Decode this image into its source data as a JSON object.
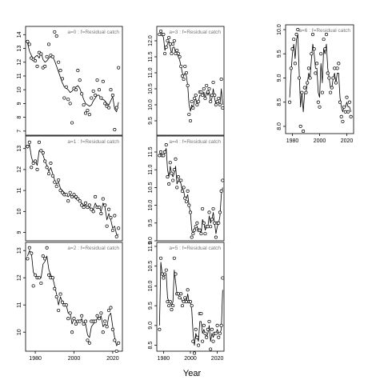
{
  "chart_data": {
    "type": "scatter",
    "xlabel": "Year",
    "x_ticks": [
      1980,
      2000,
      2020
    ],
    "panels": [
      {
        "id": "a0",
        "label": "a=0  :  f=Residual catch",
        "xlim": [
          1975,
          2025
        ],
        "ylim": [
          6.7,
          14.6
        ],
        "yticks": [
          7,
          8,
          9,
          10,
          11,
          12,
          13,
          14
        ],
        "x_axis": false,
        "x_vals_idx": true,
        "years": [
          1976,
          1977,
          1978,
          1979,
          1980,
          1981,
          1982,
          1983,
          1984,
          1985,
          1986,
          1987,
          1988,
          1989,
          1990,
          1991,
          1992,
          1993,
          1994,
          1995,
          1996,
          1997,
          1998,
          1999,
          2000,
          2001,
          2002,
          2003,
          2004,
          2005,
          2006,
          2007,
          2008,
          2009,
          2010,
          2011,
          2012,
          2013,
          2014,
          2015,
          2016,
          2017,
          2018,
          2019,
          2020,
          2021,
          2022,
          2023
        ],
        "points": [
          13.5,
          13.3,
          12.3,
          12.2,
          12.1,
          11.7,
          12.7,
          12.6,
          11.6,
          11.7,
          12.4,
          13.3,
          12.5,
          12.4,
          14.2,
          13.9,
          12.0,
          11.4,
          10.8,
          9.4,
          10.2,
          9.3,
          9.0,
          7.6,
          10.1,
          10.0,
          11.4,
          10.7,
          9.7,
          8.9,
          8.3,
          8.5,
          8.2,
          9.4,
          9.9,
          9.6,
          10.7,
          10.0,
          9.4,
          10.6,
          9.0,
          8.8,
          8.7,
          10.0,
          9.6,
          7.1,
          8.7,
          11.6
        ],
        "fit": [
          13.4,
          12.8,
          12.5,
          12.2,
          12.4,
          12.5,
          12.3,
          12.7,
          12.2,
          12.0,
          12.1,
          12.3,
          12.4,
          12.4,
          12.1,
          11.7,
          11.3,
          10.9,
          10.5,
          10.2,
          10.1,
          10.0,
          9.8,
          9.9,
          10.1,
          10.2,
          10.3,
          10.1,
          9.7,
          9.3,
          9.0,
          8.9,
          8.8,
          8.9,
          9.2,
          9.4,
          9.6,
          9.6,
          9.3,
          9.3,
          9.2,
          9.0,
          8.9,
          9.2,
          9.5,
          8.6,
          8.4,
          9.1
        ]
      },
      {
        "id": "a1",
        "label": "a=1  :  f=Residual catch",
        "xlim": [
          1975,
          2025
        ],
        "ylim": [
          8.6,
          13.6
        ],
        "yticks": [
          9,
          10,
          11,
          12,
          13
        ],
        "x_axis": false,
        "years": [
          1976,
          1977,
          1978,
          1979,
          1980,
          1981,
          1982,
          1983,
          1984,
          1985,
          1986,
          1987,
          1988,
          1989,
          1990,
          1991,
          1992,
          1993,
          1994,
          1995,
          1996,
          1997,
          1998,
          1999,
          2000,
          2001,
          2002,
          2003,
          2004,
          2005,
          2006,
          2007,
          2008,
          2009,
          2010,
          2011,
          2012,
          2013,
          2014,
          2015,
          2016,
          2017,
          2018,
          2019,
          2020,
          2021,
          2022,
          2023
        ],
        "points": [
          13.1,
          13.3,
          12.1,
          12.3,
          12.4,
          12.0,
          13.3,
          12.9,
          12.8,
          12.4,
          12.1,
          11.8,
          12.3,
          11.7,
          11.4,
          11.2,
          11.5,
          11.0,
          10.9,
          10.8,
          10.8,
          10.5,
          10.9,
          10.7,
          10.8,
          10.7,
          10.6,
          10.5,
          10.3,
          10.2,
          10.4,
          10.2,
          10.3,
          10.1,
          10.0,
          10.7,
          10.2,
          10.2,
          9.9,
          10.6,
          10.3,
          9.3,
          10.1,
          9.7,
          9.1,
          9.8,
          8.8,
          9.2
        ],
        "fit": [
          13.0,
          13.2,
          12.6,
          12.3,
          12.4,
          12.2,
          12.9,
          12.9,
          12.7,
          12.4,
          12.2,
          11.9,
          12.1,
          11.8,
          11.5,
          11.3,
          11.4,
          11.1,
          11.0,
          10.9,
          10.8,
          10.7,
          10.8,
          10.7,
          10.7,
          10.6,
          10.6,
          10.5,
          10.4,
          10.3,
          10.3,
          10.2,
          10.2,
          10.1,
          10.1,
          10.4,
          10.2,
          10.2,
          10.0,
          10.4,
          10.2,
          9.6,
          9.9,
          9.6,
          9.2,
          9.3,
          8.9,
          8.9
        ]
      },
      {
        "id": "a2",
        "label": "a=2  :  f=Residual catch",
        "xlim": [
          1975,
          2025
        ],
        "ylim": [
          9.3,
          13.3
        ],
        "yticks": [
          10,
          11,
          12,
          13
        ],
        "x_axis": true,
        "years": [
          1976,
          1977,
          1978,
          1979,
          1980,
          1981,
          1982,
          1983,
          1984,
          1985,
          1986,
          1987,
          1988,
          1989,
          1990,
          1991,
          1992,
          1993,
          1994,
          1995,
          1996,
          1997,
          1998,
          1999,
          2000,
          2001,
          2002,
          2003,
          2004,
          2005,
          2006,
          2007,
          2008,
          2009,
          2010,
          2011,
          2012,
          2013,
          2014,
          2015,
          2016,
          2017,
          2018,
          2019,
          2020,
          2021,
          2022,
          2023
        ],
        "points": [
          12.7,
          13.1,
          12.9,
          11.7,
          12.1,
          12.0,
          12.0,
          11.8,
          12.8,
          12.7,
          13.1,
          12.1,
          12.0,
          12.0,
          11.6,
          11.3,
          10.8,
          11.4,
          11.1,
          11.0,
          11.0,
          10.5,
          10.7,
          10.0,
          10.5,
          10.3,
          10.4,
          10.4,
          10.6,
          10.3,
          10.4,
          9.7,
          9.6,
          10.4,
          10.4,
          10.4,
          10.6,
          10.5,
          10.7,
          10.0,
          10.4,
          10.2,
          10.8,
          10.9,
          10.1,
          9.7,
          9.3,
          9.6
        ],
        "fit": [
          12.8,
          13.0,
          12.9,
          12.2,
          12.1,
          12.0,
          12.0,
          12.0,
          12.5,
          12.6,
          12.8,
          12.3,
          12.1,
          12.0,
          11.7,
          11.4,
          11.0,
          11.3,
          11.1,
          11.0,
          11.0,
          10.7,
          10.7,
          10.3,
          10.5,
          10.4,
          10.4,
          10.4,
          10.5,
          10.3,
          10.3,
          9.9,
          9.8,
          10.2,
          10.3,
          10.4,
          10.5,
          10.5,
          10.6,
          10.2,
          10.3,
          10.2,
          10.6,
          10.7,
          10.2,
          9.8,
          9.5,
          9.6
        ]
      },
      {
        "id": "a3",
        "label": "a=3  :  f=Residual catch",
        "xlim": [
          1975,
          2025
        ],
        "ylim": [
          9.05,
          12.45
        ],
        "yticks": [
          9.5,
          10.0,
          10.5,
          11.0,
          11.5,
          12.0
        ],
        "x_axis": false,
        "years": [
          1977,
          1978,
          1979,
          1980,
          1981,
          1982,
          1983,
          1984,
          1985,
          1986,
          1987,
          1988,
          1989,
          1990,
          1991,
          1992,
          1993,
          1994,
          1995,
          1996,
          1997,
          1998,
          1999,
          2000,
          2001,
          2002,
          2003,
          2004,
          2005,
          2006,
          2007,
          2008,
          2009,
          2010,
          2011,
          2012,
          2013,
          2014,
          2015,
          2016,
          2017,
          2018,
          2019,
          2020,
          2021,
          2022,
          2023,
          2024
        ],
        "points": [
          12.2,
          12.3,
          12.2,
          12.2,
          11.6,
          11.8,
          12.0,
          12.1,
          11.9,
          11.6,
          11.9,
          12.0,
          11.6,
          11.7,
          11.6,
          11.5,
          11.2,
          10.9,
          10.8,
          11.2,
          11.0,
          10.6,
          9.7,
          9.5,
          10.1,
          9.9,
          10.2,
          10.3,
          10.0,
          10.1,
          10.4,
          10.4,
          10.3,
          10.5,
          10.2,
          10.6,
          10.4,
          10.5,
          10.1,
          10.3,
          10.7,
          10.3,
          10.0,
          10.1,
          10.2,
          10.0,
          10.8,
          9.9
        ],
        "fit": [
          12.2,
          12.2,
          12.2,
          12.1,
          11.7,
          11.8,
          11.9,
          12.0,
          11.8,
          11.6,
          11.8,
          11.8,
          11.6,
          11.6,
          11.5,
          11.4,
          11.2,
          11.0,
          10.9,
          11.0,
          10.9,
          10.6,
          10.0,
          9.8,
          10.0,
          9.9,
          10.1,
          10.2,
          10.0,
          10.1,
          10.3,
          10.3,
          10.3,
          10.4,
          10.2,
          10.4,
          10.3,
          10.4,
          10.1,
          10.2,
          10.5,
          10.2,
          10.0,
          10.1,
          10.1,
          10.0,
          10.5,
          10.0
        ]
      },
      {
        "id": "a4",
        "label": "a=4  :  f=Residual catch",
        "xlim": [
          1975,
          2025
        ],
        "ylim": [
          9.0,
          11.95
        ],
        "yticks": [
          9.0,
          9.5,
          10.0,
          10.5,
          11.0,
          11.5
        ],
        "x_axis": false,
        "years": [
          1977,
          1978,
          1979,
          1980,
          1981,
          1982,
          1983,
          1984,
          1985,
          1986,
          1987,
          1988,
          1989,
          1990,
          1991,
          1992,
          1993,
          1994,
          1995,
          1996,
          1997,
          1998,
          1999,
          2000,
          2001,
          2002,
          2003,
          2004,
          2005,
          2006,
          2007,
          2008,
          2009,
          2010,
          2011,
          2012,
          2013,
          2014,
          2015,
          2016,
          2017,
          2018,
          2019,
          2020,
          2021,
          2022,
          2023,
          2024
        ],
        "points": [
          11.4,
          11.5,
          11.4,
          11.4,
          11.5,
          11.7,
          10.8,
          10.6,
          11.2,
          10.9,
          10.7,
          11.0,
          11.3,
          10.5,
          10.8,
          10.7,
          10.7,
          10.4,
          10.5,
          10.2,
          10.1,
          10.4,
          10.0,
          9.8,
          9.1,
          9.2,
          9.3,
          9.4,
          9.5,
          9.3,
          9.3,
          9.2,
          9.9,
          9.5,
          9.2,
          9.4,
          9.4,
          9.8,
          9.4,
          9.6,
          9.9,
          9.5,
          9.1,
          9.5,
          9.5,
          9.8,
          10.4,
          10.7
        ],
        "fit": [
          11.4,
          11.5,
          11.4,
          11.4,
          11.5,
          11.6,
          11.0,
          10.8,
          11.1,
          10.9,
          10.8,
          10.9,
          11.1,
          10.6,
          10.7,
          10.7,
          10.6,
          10.4,
          10.4,
          10.2,
          10.2,
          10.3,
          10.0,
          9.8,
          9.3,
          9.2,
          9.3,
          9.4,
          9.4,
          9.3,
          9.3,
          9.2,
          9.6,
          9.5,
          9.3,
          9.4,
          9.4,
          9.7,
          9.5,
          9.6,
          9.8,
          9.5,
          9.2,
          9.4,
          9.5,
          9.7,
          10.3,
          10.5
        ]
      },
      {
        "id": "a5",
        "label": "a=5  :  f=Residual catch",
        "xlim": [
          1975,
          2025
        ],
        "ylim": [
          8.35,
          11.1
        ],
        "yticks": [
          8.5,
          9.0,
          9.5,
          10.0,
          10.5,
          11.0
        ],
        "x_axis": true,
        "years": [
          1977,
          1978,
          1979,
          1980,
          1981,
          1982,
          1983,
          1984,
          1985,
          1986,
          1987,
          1988,
          1989,
          1990,
          1991,
          1992,
          1993,
          1994,
          1995,
          1996,
          1997,
          1998,
          1999,
          2000,
          2001,
          2002,
          2003,
          2004,
          2005,
          2006,
          2007,
          2008,
          2009,
          2010,
          2011,
          2012,
          2013,
          2014,
          2015,
          2016,
          2017,
          2018,
          2019,
          2020,
          2021,
          2022,
          2023,
          2024
        ],
        "points": [
          8.9,
          10.7,
          10.3,
          10.2,
          10.3,
          10.4,
          9.6,
          9.5,
          9.6,
          9.4,
          9.5,
          10.7,
          10.3,
          9.8,
          9.8,
          9.7,
          9.8,
          9.5,
          9.6,
          9.7,
          9.6,
          9.9,
          9.6,
          9.6,
          9.5,
          8.6,
          8.3,
          8.9,
          8.7,
          8.5,
          9.3,
          9.3,
          8.6,
          9.0,
          8.8,
          8.7,
          8.9,
          9.1,
          8.4,
          8.9,
          8.6,
          8.8,
          8.8,
          9.0,
          8.7,
          8.8,
          9.0,
          10.2
        ],
        "fit": [
          9.0,
          10.6,
          10.3,
          10.2,
          10.3,
          10.3,
          9.7,
          9.6,
          9.6,
          9.5,
          9.6,
          10.4,
          10.1,
          9.8,
          9.8,
          9.7,
          9.7,
          9.6,
          9.6,
          9.7,
          9.6,
          9.8,
          9.6,
          9.6,
          9.4,
          8.8,
          8.5,
          8.8,
          8.7,
          8.6,
          9.1,
          9.1,
          8.8,
          8.9,
          8.8,
          8.7,
          8.8,
          9.0,
          8.6,
          8.8,
          8.7,
          8.8,
          8.8,
          8.9,
          8.8,
          8.8,
          8.9,
          9.9
        ]
      },
      {
        "id": "a6",
        "label": "a=6  :  f=Residual catch",
        "xlim": [
          1975,
          2025
        ],
        "ylim": [
          7.85,
          10.1
        ],
        "yticks": [
          8.0,
          8.5,
          9.0,
          9.5,
          10.0
        ],
        "x_axis": true,
        "years": [
          1978,
          1979,
          1980,
          1981,
          1982,
          1983,
          1984,
          1985,
          1986,
          1987,
          1988,
          1989,
          1990,
          1991,
          1992,
          1993,
          1994,
          1995,
          1996,
          1997,
          1998,
          1999,
          2000,
          2001,
          2002,
          2003,
          2004,
          2005,
          2006,
          2007,
          2008,
          2009,
          2010,
          2011,
          2012,
          2013,
          2014,
          2015,
          2016,
          2017,
          2018,
          2019,
          2020,
          2021,
          2022,
          2023
        ],
        "points": [
          8.5,
          9.2,
          9.6,
          9.8,
          9.3,
          9.9,
          10.0,
          9.0,
          8.0,
          8.7,
          7.9,
          8.8,
          8.7,
          8.9,
          9.2,
          9.0,
          9.5,
          9.9,
          9.6,
          9.1,
          9.3,
          8.5,
          8.4,
          9.5,
          8.7,
          9.8,
          9.6,
          9.9,
          9.1,
          9.0,
          8.7,
          8.8,
          9.0,
          9.2,
          8.9,
          9.2,
          9.3,
          8.5,
          8.2,
          8.1,
          8.4,
          8.3,
          8.6,
          8.3,
          8.5,
          8.2
        ],
        "fit": [
          8.6,
          9.1,
          9.5,
          9.7,
          9.4,
          9.8,
          9.9,
          9.1,
          8.4,
          8.7,
          8.3,
          8.7,
          8.7,
          8.9,
          9.1,
          9.0,
          9.4,
          9.7,
          9.5,
          9.2,
          9.2,
          8.7,
          8.6,
          9.3,
          8.9,
          9.6,
          9.5,
          9.7,
          9.2,
          9.0,
          8.8,
          8.8,
          9.0,
          9.1,
          8.9,
          9.1,
          9.1,
          8.6,
          8.4,
          8.3,
          8.4,
          8.4,
          8.5,
          8.4,
          8.4,
          8.3
        ]
      }
    ]
  }
}
